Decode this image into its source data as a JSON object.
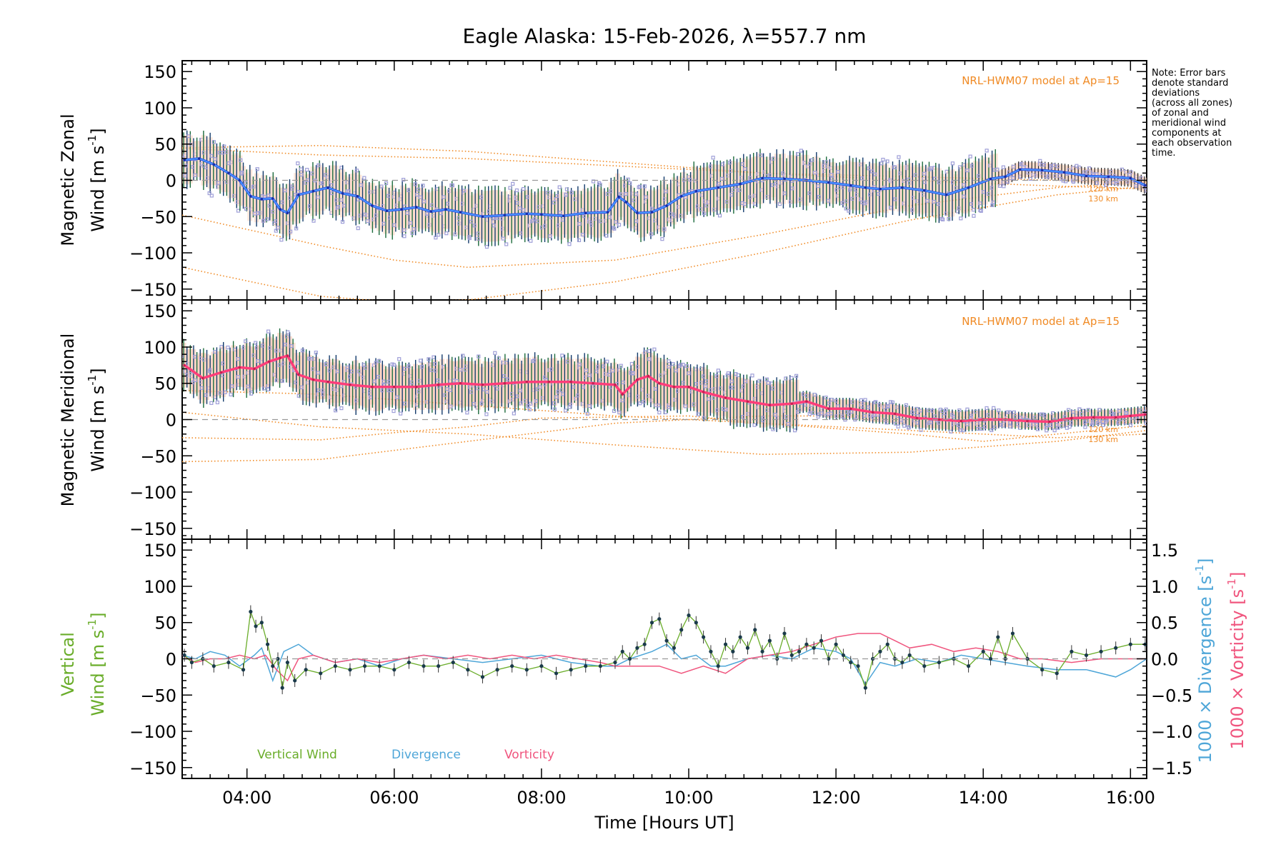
{
  "chart_data": {
    "type": "line",
    "title": "Eagle Alaska: 15-Feb-2026, λ=557.7 nm",
    "xlabel": "Time [Hours UT]",
    "xlim": [
      3.12,
      16.22
    ],
    "x_ticks": [
      4,
      6,
      8,
      10,
      12,
      14,
      16
    ],
    "x_tick_labels": [
      "04:00",
      "06:00",
      "08:00",
      "10:00",
      "12:00",
      "14:00",
      "16:00"
    ],
    "y_ticks": [
      -150,
      -100,
      -50,
      0,
      50,
      100,
      150
    ],
    "note": [
      "Note: Error bars",
      "denote standard",
      "deviations",
      "(across all zones)",
      "of zonal and",
      "meridional wind",
      "components at",
      "each observation",
      "time."
    ],
    "panels": [
      {
        "id": "zonal",
        "ylabel_line1": "Magnetic Zonal",
        "ylabel_line2": "Wind [m s",
        "ylabel_sup": "-1",
        "ylabel_close": "]",
        "ylim": [
          -165,
          165
        ],
        "model_label": "NRL-HWM07 model at Ap=15",
        "model_alt_labels": [
          "120 km",
          "130 km"
        ],
        "series": {
          "name": "Magnetic Zonal Wind",
          "x": [
            3.15,
            3.35,
            3.55,
            3.75,
            3.9,
            4.05,
            4.2,
            4.35,
            4.45,
            4.55,
            4.7,
            4.9,
            5.1,
            5.3,
            5.5,
            5.7,
            5.9,
            6.1,
            6.3,
            6.5,
            6.7,
            6.9,
            7.2,
            7.5,
            7.8,
            8.0,
            8.3,
            8.6,
            8.9,
            9.05,
            9.15,
            9.3,
            9.5,
            9.7,
            9.9,
            10.1,
            10.4,
            10.7,
            11.0,
            11.3,
            11.6,
            11.9,
            12.2,
            12.4,
            12.6,
            12.9,
            13.2,
            13.5,
            13.8,
            14.1,
            14.3,
            14.5,
            14.8,
            15.1,
            15.4,
            15.7,
            16.0,
            16.2
          ],
          "y": [
            28,
            30,
            22,
            10,
            0,
            -22,
            -26,
            -25,
            -40,
            -45,
            -20,
            -15,
            -10,
            -18,
            -22,
            -35,
            -42,
            -40,
            -37,
            -43,
            -40,
            -44,
            -50,
            -48,
            -46,
            -47,
            -49,
            -45,
            -44,
            -23,
            -30,
            -45,
            -44,
            -35,
            -22,
            -15,
            -10,
            -5,
            3,
            2,
            0,
            -3,
            -7,
            -10,
            -12,
            -10,
            -14,
            -20,
            -10,
            2,
            5,
            15,
            14,
            11,
            6,
            5,
            3,
            -7
          ]
        },
        "model_curves": [
          {
            "x": [
              3.12,
              5,
              7,
              9,
              11,
              13,
              15,
              16.22
            ],
            "y": [
              44,
              35,
              30,
              20,
              10,
              5,
              0,
              -3
            ]
          },
          {
            "x": [
              3.12,
              5,
              6,
              7,
              9,
              11,
              13,
              15,
              16.22
            ],
            "y": [
              -48,
              -90,
              -110,
              -120,
              -110,
              -75,
              -35,
              -10,
              -2
            ]
          },
          {
            "x": [
              3.12,
              5,
              6,
              7,
              9,
              11,
              13,
              15,
              16.22
            ],
            "y": [
              -120,
              -160,
              -168,
              -165,
              -140,
              -100,
              -55,
              -20,
              -8
            ]
          },
          {
            "x": [
              3.12,
              5,
              7,
              9,
              11,
              13,
              15,
              16.22
            ],
            "y": [
              45,
              48,
              40,
              25,
              10,
              0,
              -8,
              -12
            ]
          }
        ]
      },
      {
        "id": "meridional",
        "ylabel_line1": "Magnetic Meridional",
        "ylabel_line2": "Wind [m s",
        "ylabel_sup": "-1",
        "ylabel_close": "]",
        "ylim": [
          -165,
          165
        ],
        "model_label": "NRL-HWM07 model at Ap=15",
        "model_alt_labels": [
          "120 km",
          "130 km"
        ],
        "series": {
          "name": "Magnetic Meridional Wind",
          "x": [
            3.15,
            3.4,
            3.65,
            3.9,
            4.1,
            4.3,
            4.45,
            4.55,
            4.7,
            4.9,
            5.1,
            5.4,
            5.7,
            6.0,
            6.3,
            6.6,
            6.9,
            7.2,
            7.5,
            7.8,
            8.1,
            8.4,
            8.7,
            9.0,
            9.1,
            9.3,
            9.45,
            9.6,
            9.8,
            10.0,
            10.2,
            10.5,
            10.8,
            11.1,
            11.4,
            11.6,
            11.9,
            12.2,
            12.5,
            12.8,
            13.1,
            13.4,
            13.7,
            14.0,
            14.3,
            14.6,
            14.9,
            15.2,
            15.5,
            15.8,
            16.0,
            16.2
          ],
          "y": [
            75,
            57,
            65,
            72,
            70,
            80,
            85,
            88,
            62,
            55,
            52,
            48,
            45,
            45,
            45,
            48,
            50,
            48,
            50,
            52,
            52,
            52,
            50,
            48,
            35,
            55,
            60,
            50,
            45,
            45,
            38,
            30,
            25,
            20,
            22,
            25,
            15,
            15,
            10,
            8,
            2,
            0,
            -2,
            0,
            0,
            -2,
            -3,
            2,
            3,
            3,
            5,
            7
          ]
        },
        "model_curves": [
          {
            "x": [
              3.12,
              5,
              7,
              9,
              11,
              13,
              15,
              16.22
            ],
            "y": [
              -58,
              -55,
              -30,
              -5,
              5,
              5,
              0,
              -5
            ]
          },
          {
            "x": [
              3.12,
              5,
              7,
              9,
              11,
              13,
              15,
              16.22
            ],
            "y": [
              10,
              -10,
              -20,
              -35,
              -48,
              -45,
              -30,
              -15
            ]
          },
          {
            "x": [
              3.12,
              5,
              6,
              7,
              8,
              10,
              11,
              13,
              14,
              15,
              16.22
            ],
            "y": [
              -25,
              -28,
              -18,
              -10,
              2,
              5,
              -5,
              -20,
              -30,
              -20,
              -8
            ]
          },
          {
            "x": [
              3.12,
              5,
              7,
              9,
              11,
              13,
              15,
              16.22
            ],
            "y": [
              40,
              35,
              20,
              5,
              -5,
              -15,
              -25,
              -20
            ]
          }
        ]
      },
      {
        "id": "vertical",
        "ylabel_line1": "Vertical",
        "ylabel_line2": "Wind [m s",
        "ylabel_sup": "-1",
        "ylabel_close": "]",
        "ylim": [
          -165,
          165
        ],
        "right_axis": {
          "ylim": [
            -1.65,
            1.65
          ],
          "ticks": [
            -1.5,
            -1.0,
            -0.5,
            0.0,
            0.5,
            1.0,
            1.5
          ],
          "tick_labels": [
            "−1.5",
            "−1.0",
            "−0.5",
            "0.0",
            "0.5",
            "1.0",
            "1.5"
          ],
          "label_divergence": "1000 × Divergence [s",
          "label_vorticity": "1000 × Vorticity [s",
          "label_sup": "-1",
          "label_close": "]"
        },
        "legend": [
          "Vertical Wind",
          "Divergence",
          "Vorticity"
        ],
        "series": [
          {
            "name": "Vertical Wind",
            "x": [
              3.15,
              3.25,
              3.4,
              3.55,
              3.75,
              3.95,
              4.05,
              4.12,
              4.2,
              4.28,
              4.35,
              4.42,
              4.48,
              4.55,
              4.65,
              4.8,
              5.0,
              5.2,
              5.4,
              5.6,
              5.8,
              6.0,
              6.2,
              6.4,
              6.6,
              6.8,
              7.0,
              7.2,
              7.4,
              7.6,
              7.8,
              8.0,
              8.2,
              8.4,
              8.6,
              8.8,
              9.0,
              9.1,
              9.2,
              9.3,
              9.4,
              9.5,
              9.6,
              9.7,
              9.8,
              9.9,
              10.0,
              10.1,
              10.2,
              10.3,
              10.4,
              10.5,
              10.6,
              10.7,
              10.8,
              10.9,
              11.0,
              11.1,
              11.2,
              11.3,
              11.4,
              11.5,
              11.6,
              11.7,
              11.8,
              11.9,
              12.0,
              12.1,
              12.2,
              12.3,
              12.4,
              12.5,
              12.6,
              12.7,
              12.8,
              12.9,
              13.0,
              13.2,
              13.4,
              13.6,
              13.8,
              14.0,
              14.1,
              14.2,
              14.3,
              14.4,
              14.6,
              14.8,
              15.0,
              15.2,
              15.4,
              15.6,
              15.8,
              16.0,
              16.2
            ],
            "y": [
              5,
              -5,
              0,
              -10,
              -5,
              -15,
              65,
              45,
              50,
              20,
              -10,
              0,
              -40,
              -5,
              -30,
              -15,
              -20,
              -10,
              -15,
              -10,
              -10,
              -15,
              -5,
              -10,
              -10,
              -5,
              -15,
              -25,
              -15,
              -10,
              -15,
              -10,
              -20,
              -15,
              -10,
              -10,
              -5,
              10,
              0,
              15,
              20,
              50,
              55,
              25,
              15,
              40,
              60,
              50,
              30,
              10,
              -10,
              20,
              10,
              30,
              15,
              40,
              10,
              25,
              0,
              35,
              5,
              10,
              20,
              15,
              25,
              0,
              20,
              5,
              -5,
              -10,
              -40,
              0,
              10,
              20,
              0,
              -5,
              5,
              -10,
              -5,
              0,
              -10,
              10,
              0,
              30,
              0,
              35,
              0,
              -15,
              -20,
              10,
              5,
              10,
              15,
              20,
              20
            ]
          },
          {
            "name": "Divergence",
            "x": [
              3.12,
              3.3,
              3.5,
              3.7,
              3.9,
              4.1,
              4.2,
              4.35,
              4.5,
              4.7,
              4.9,
              5.2,
              5.5,
              5.8,
              6.1,
              6.4,
              6.8,
              7.2,
              7.6,
              8.0,
              8.4,
              8.8,
              9.0,
              9.2,
              9.5,
              9.7,
              9.9,
              10.1,
              10.3,
              10.5,
              10.8,
              11.1,
              11.4,
              11.7,
              12.0,
              12.2,
              12.4,
              12.6,
              12.8,
              13.1,
              13.4,
              13.7,
              14.0,
              14.3,
              14.6,
              15.0,
              15.4,
              15.8,
              16.0,
              16.22
            ],
            "y": [
              0.05,
              0.0,
              0.1,
              0.05,
              -0.1,
              0.05,
              0.15,
              -0.3,
              0.1,
              0.2,
              0.05,
              -0.05,
              0.0,
              -0.1,
              0.0,
              0.05,
              0.0,
              -0.05,
              0.0,
              0.05,
              -0.05,
              -0.1,
              -0.1,
              0.0,
              0.1,
              0.2,
              0.0,
              0.05,
              -0.1,
              -0.1,
              0.0,
              0.05,
              0.0,
              0.15,
              0.1,
              0.0,
              -0.35,
              -0.05,
              -0.1,
              0.0,
              -0.05,
              0.05,
              0.0,
              -0.05,
              -0.1,
              -0.15,
              -0.15,
              -0.25,
              -0.15,
              0.0
            ]
          },
          {
            "name": "Vorticity",
            "x": [
              3.12,
              3.3,
              3.5,
              3.7,
              3.9,
              4.1,
              4.25,
              4.4,
              4.55,
              4.7,
              4.9,
              5.2,
              5.5,
              5.8,
              6.1,
              6.4,
              6.7,
              7.0,
              7.3,
              7.6,
              7.9,
              8.2,
              8.5,
              8.8,
              9.0,
              9.3,
              9.6,
              9.9,
              10.2,
              10.5,
              10.8,
              11.1,
              11.4,
              11.7,
              12.0,
              12.3,
              12.6,
              12.8,
              13.0,
              13.3,
              13.6,
              13.9,
              14.2,
              14.5,
              14.8,
              15.2,
              15.6,
              16.0,
              16.22
            ],
            "y": [
              0.05,
              -0.05,
              0.0,
              0.0,
              0.05,
              0.0,
              0.05,
              -0.15,
              -0.3,
              0.0,
              0.05,
              -0.05,
              0.0,
              -0.05,
              0.0,
              0.05,
              0.0,
              0.05,
              0.0,
              0.05,
              0.0,
              0.05,
              0.0,
              -0.05,
              -0.1,
              -0.1,
              -0.1,
              -0.2,
              -0.1,
              -0.2,
              0.0,
              0.05,
              0.1,
              0.2,
              0.3,
              0.35,
              0.35,
              0.25,
              0.15,
              0.2,
              0.1,
              0.15,
              0.1,
              0.0,
              0.0,
              -0.05,
              0.0,
              0.0,
              0.0
            ]
          }
        ]
      }
    ]
  }
}
